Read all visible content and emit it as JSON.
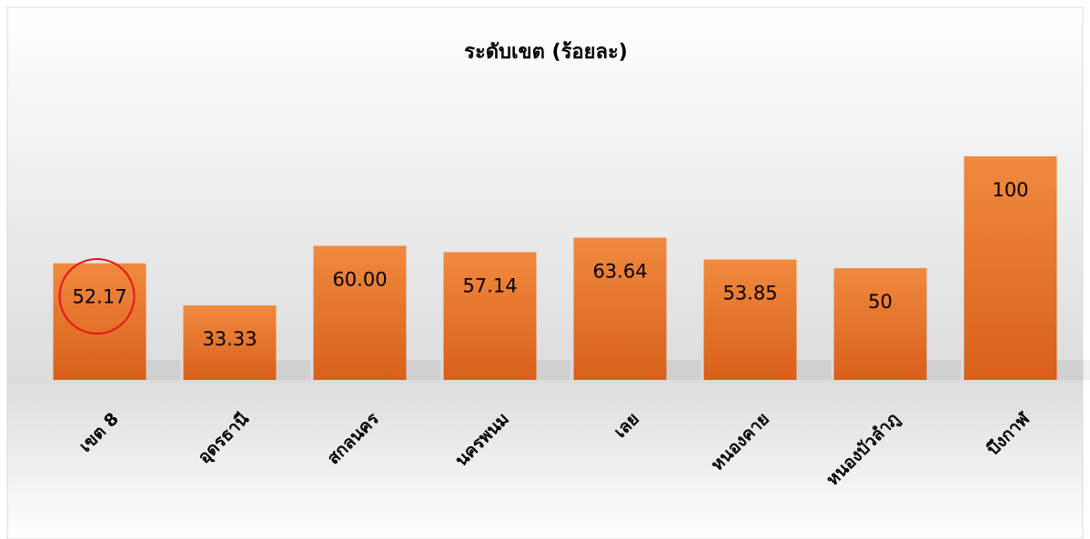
{
  "chart_data": {
    "type": "bar",
    "title": "ระดับเขต (ร้อยละ)",
    "categories": [
      "เขต 8",
      "อุดรธานี",
      "สกลนคร",
      "นครพนม",
      "เลย",
      "หนองคาย",
      "หนองบัวลำภู",
      "บึงกาฬ"
    ],
    "values": [
      52.17,
      33.33,
      60,
      57.14,
      63.64,
      53.85,
      50,
      100
    ],
    "value_labels": [
      "52.17",
      "33.33",
      "60.00",
      "57.14",
      "63.64",
      "53.85",
      "50",
      "100"
    ],
    "color": "#e8772e",
    "ylim": [
      0,
      100
    ]
  }
}
